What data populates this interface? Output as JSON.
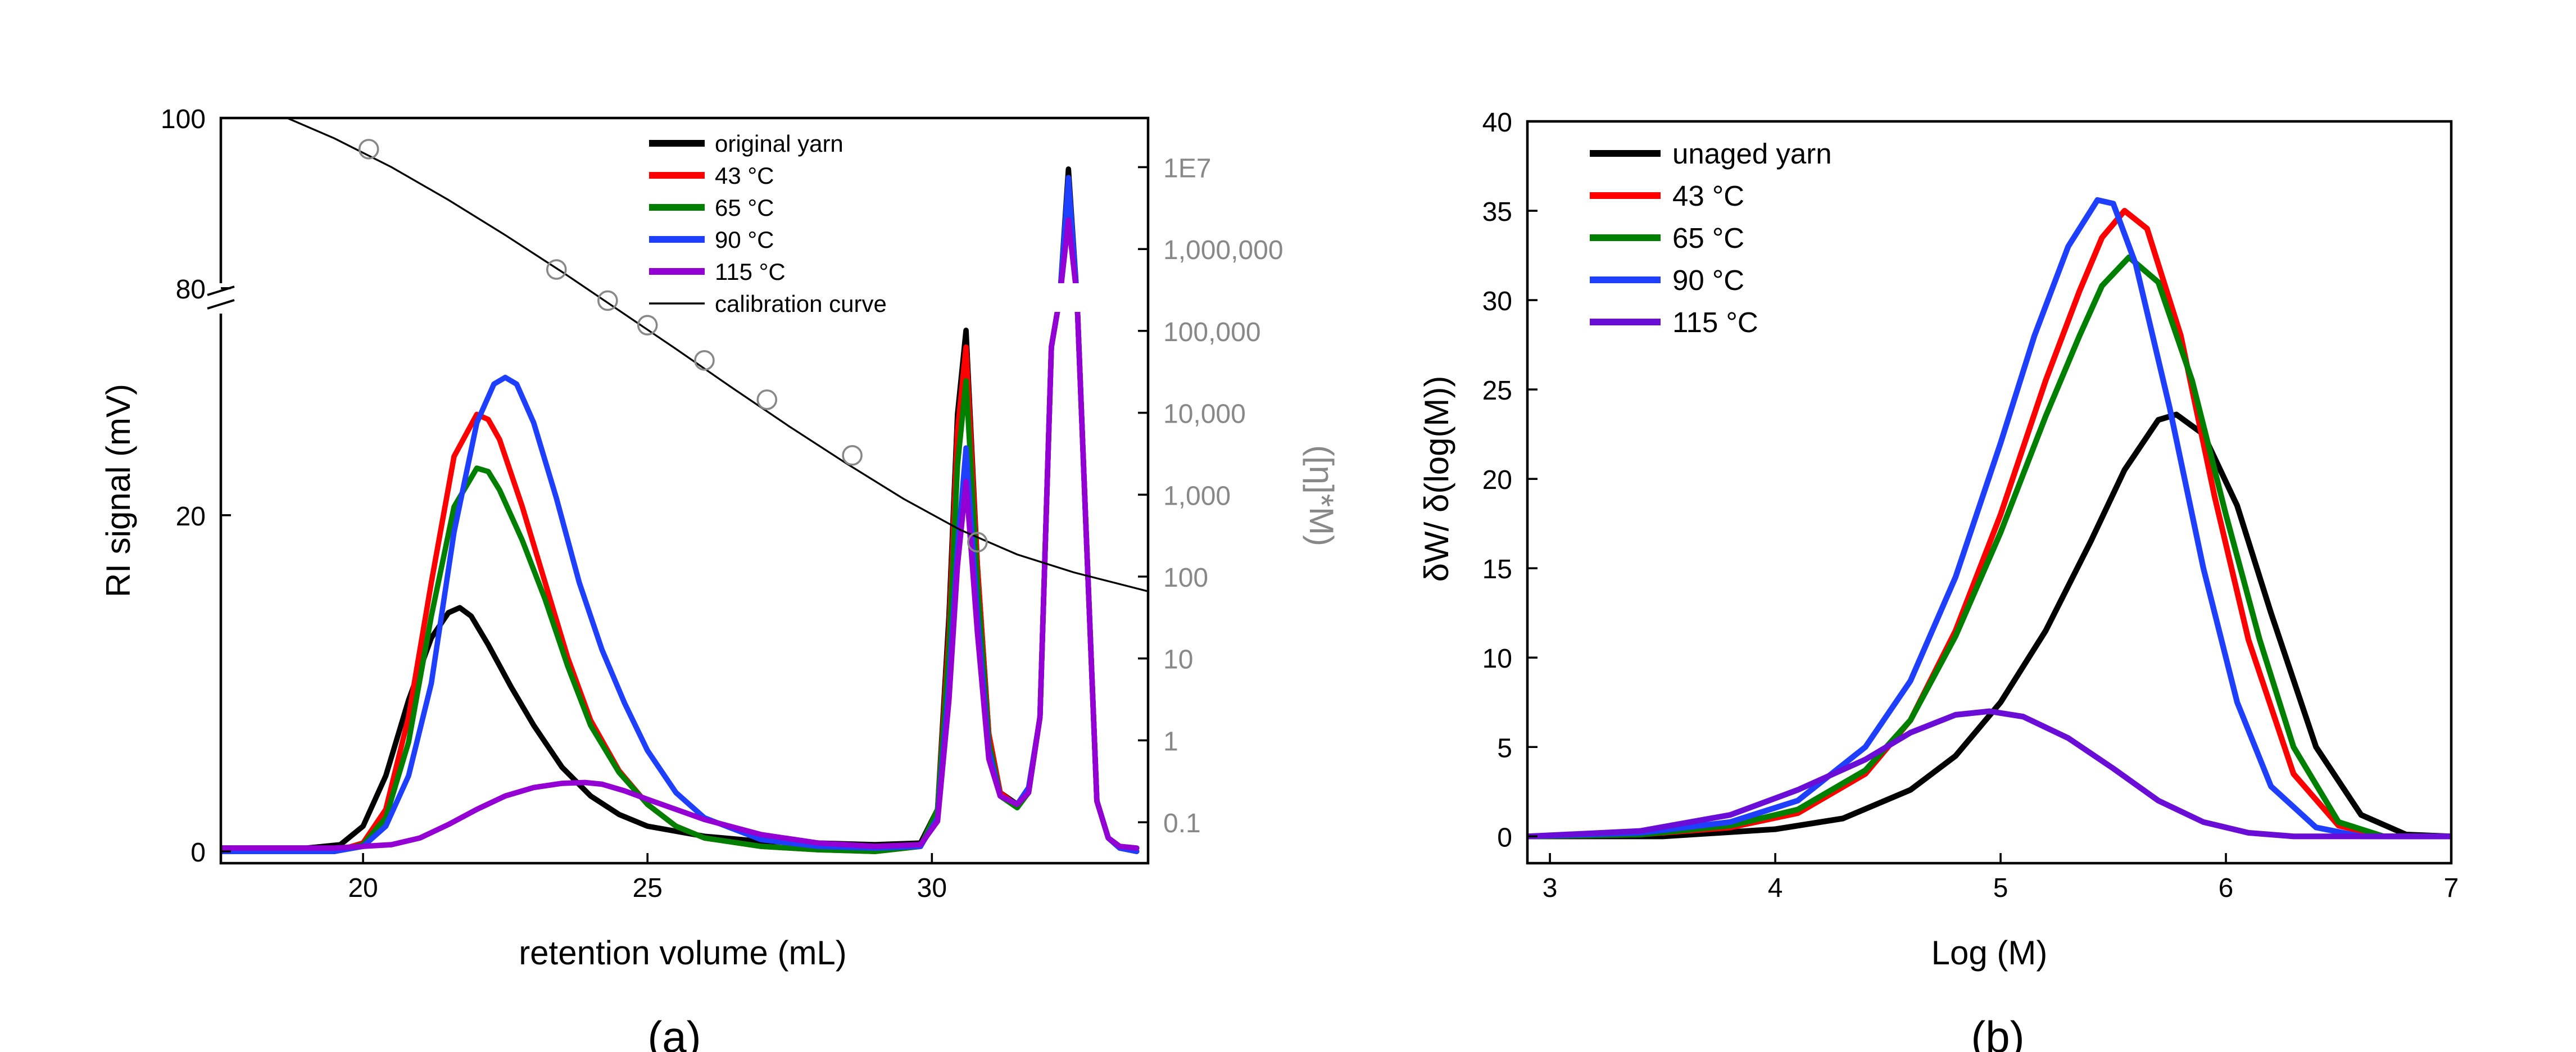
{
  "chart_data": [
    {
      "type": "line",
      "panel_label": "(a)",
      "xlabel": "retention volume (mL)",
      "ylabel": "RI signal (mV)",
      "y2label": "([η]*M)",
      "xlim": [
        17.5,
        33.8
      ],
      "x_ticks": [
        "20",
        "25",
        "30"
      ],
      "x_tick_values": [
        20,
        25,
        30
      ],
      "y_axis_break": true,
      "y_lower": {
        "lim": [
          -0.7,
          33
        ],
        "ticks": [
          "0",
          "20"
        ],
        "tick_values": [
          0,
          20
        ]
      },
      "y_upper": {
        "lim": [
          79,
          100
        ],
        "ticks": [
          "80",
          "100"
        ],
        "tick_values": [
          80,
          100
        ]
      },
      "y2_log_range": [
        -1.5,
        7.6
      ],
      "y2_ticks": [
        "0.1",
        "1",
        "10",
        "100",
        "1,000",
        "10,000",
        "100,000",
        "1,000,000",
        "1E7"
      ],
      "y2_tick_exponents": [
        -1,
        0,
        1,
        2,
        3,
        4,
        5,
        6,
        7
      ],
      "legend": [
        "original yarn",
        "43 °C",
        "65 °C",
        "90 °C",
        "115 °C",
        "calibration curve"
      ],
      "legend_position": "top-right",
      "series": [
        {
          "name": "original yarn",
          "color": "#000000",
          "x": [
            17.5,
            19.0,
            19.6,
            20.0,
            20.4,
            20.8,
            21.2,
            21.5,
            21.7,
            21.9,
            22.2,
            22.6,
            23.0,
            23.5,
            24.0,
            24.5,
            25.0,
            26.0,
            27.0,
            28.0,
            29.0,
            29.8,
            30.1,
            30.3,
            30.45,
            30.6,
            30.8,
            31.0,
            31.2,
            31.5,
            31.7,
            31.9,
            32.1,
            32.25,
            32.4,
            32.55,
            32.7,
            32.9,
            33.1,
            33.3,
            33.6
          ],
          "y": [
            0.2,
            0.2,
            0.4,
            1.5,
            4.5,
            9,
            12.7,
            14.2,
            14.5,
            14.0,
            12.3,
            9.8,
            7.5,
            5.0,
            3.3,
            2.2,
            1.5,
            0.9,
            0.6,
            0.5,
            0.4,
            0.5,
            2.5,
            14,
            26,
            31,
            17,
            7,
            3.5,
            2.8,
            3.5,
            8,
            30,
            60,
            94,
            72,
            20,
            3,
            0.8,
            0.3,
            0.2
          ]
        },
        {
          "name": "43 °C",
          "color": "#ff0000",
          "x": [
            17.5,
            19.5,
            20.0,
            20.4,
            20.8,
            21.2,
            21.6,
            22.0,
            22.2,
            22.4,
            22.8,
            23.2,
            23.6,
            24.0,
            24.5,
            25.0,
            25.5,
            26.0,
            27.0,
            28.0,
            29.0,
            29.8,
            30.1,
            30.3,
            30.45,
            30.6,
            30.8,
            31.0,
            31.2,
            31.5,
            31.7,
            31.9,
            32.1,
            32.25,
            32.4,
            32.55,
            32.7,
            32.9,
            33.1,
            33.3,
            33.6
          ],
          "y": [
            0,
            0,
            0.5,
            2.5,
            8,
            16,
            23.5,
            26,
            25.7,
            24.5,
            20.5,
            16,
            11.5,
            7.8,
            4.8,
            2.8,
            1.5,
            0.8,
            0.3,
            0.1,
            0,
            0.3,
            2.5,
            13,
            25,
            30,
            17,
            7,
            3.5,
            2.7,
            3.5,
            8,
            30,
            60,
            92,
            72,
            20,
            3,
            0.8,
            0.2,
            0
          ]
        },
        {
          "name": "65 °C",
          "color": "#007f00",
          "x": [
            17.5,
            19.5,
            20.0,
            20.4,
            20.8,
            21.2,
            21.6,
            22.0,
            22.2,
            22.4,
            22.8,
            23.2,
            23.6,
            24.0,
            24.5,
            25.0,
            25.5,
            26.0,
            27.0,
            28.0,
            29.0,
            29.8,
            30.1,
            30.3,
            30.45,
            30.6,
            30.8,
            31.0,
            31.2,
            31.5,
            31.7,
            31.9,
            32.1,
            32.25,
            32.4,
            32.55,
            32.7,
            32.9,
            33.1,
            33.3,
            33.6
          ],
          "y": [
            0,
            0,
            0.4,
            2,
            6.5,
            14,
            20.5,
            22.8,
            22.6,
            21.5,
            18.5,
            15,
            11,
            7.5,
            4.7,
            2.8,
            1.5,
            0.8,
            0.3,
            0.1,
            0,
            0.3,
            2.5,
            12,
            23,
            28,
            16,
            6.5,
            3.3,
            2.6,
            3.5,
            8,
            30,
            60,
            90,
            71,
            20,
            3,
            0.8,
            0.2,
            0
          ]
        },
        {
          "name": "90 °C",
          "color": "#1f3fff",
          "x": [
            17.5,
            19.5,
            20.0,
            20.4,
            20.8,
            21.2,
            21.6,
            22.0,
            22.3,
            22.5,
            22.7,
            23.0,
            23.4,
            23.8,
            24.2,
            24.6,
            25.0,
            25.5,
            26.0,
            27.0,
            28.0,
            29.0,
            29.8,
            30.1,
            30.3,
            30.45,
            30.6,
            30.8,
            31.0,
            31.2,
            31.5,
            31.7,
            31.9,
            32.1,
            32.25,
            32.4,
            32.55,
            32.7,
            32.9,
            33.1,
            33.3,
            33.6
          ],
          "y": [
            0,
            0,
            0.3,
            1.5,
            4.5,
            10,
            19,
            25.5,
            27.8,
            28.2,
            27.8,
            25.5,
            21,
            16,
            12,
            8.8,
            6,
            3.5,
            2,
            0.7,
            0.3,
            0.2,
            0.3,
            2,
            10,
            18,
            24,
            14,
            6,
            3.3,
            2.8,
            3.8,
            8,
            30,
            60,
            93,
            72,
            20,
            3,
            0.8,
            0.2,
            0
          ]
        },
        {
          "name": "115 °C",
          "color": "#9400d3",
          "x": [
            17.5,
            19.5,
            20.5,
            21.0,
            21.5,
            22.0,
            22.5,
            23.0,
            23.5,
            23.9,
            24.2,
            24.6,
            25.0,
            25.5,
            26.0,
            27.0,
            28.0,
            29.0,
            29.8,
            30.1,
            30.3,
            30.45,
            30.6,
            30.8,
            31.0,
            31.2,
            31.5,
            31.7,
            31.9,
            32.1,
            32.25,
            32.4,
            32.55,
            32.7,
            32.9,
            33.1,
            33.3,
            33.6
          ],
          "y": [
            0.2,
            0.2,
            0.4,
            0.8,
            1.6,
            2.5,
            3.3,
            3.8,
            4.05,
            4.1,
            4.0,
            3.6,
            3.1,
            2.5,
            1.9,
            1.0,
            0.5,
            0.3,
            0.4,
            1.8,
            9,
            17,
            22,
            13,
            5.5,
            3.3,
            2.8,
            3.5,
            8,
            30,
            60,
            88,
            70,
            20,
            3,
            0.8,
            0.3,
            0.2
          ]
        }
      ],
      "calibration_curve": {
        "name": "calibration curve",
        "color": "#000000",
        "x": [
          17.5,
          18.5,
          19.5,
          20.5,
          21.5,
          22.5,
          23.5,
          24.5,
          25.5,
          26.5,
          27.5,
          28.5,
          29.5,
          30.5,
          31.5,
          32.5,
          33.8
        ],
        "log10_y": [
          7.9,
          7.65,
          7.35,
          7.0,
          6.6,
          6.17,
          5.72,
          5.25,
          4.78,
          4.3,
          3.83,
          3.38,
          2.95,
          2.57,
          2.27,
          2.05,
          1.82
        ]
      },
      "calibration_points": {
        "marker": "open circle",
        "x": [
          20.1,
          23.4,
          24.3,
          25.0,
          26.0,
          27.1,
          28.6,
          30.8
        ],
        "log10_y": [
          7.22,
          5.75,
          5.37,
          5.07,
          4.64,
          4.16,
          3.48,
          2.42
        ]
      }
    },
    {
      "type": "line",
      "panel_label": "(b)",
      "xlabel": "Log (M)",
      "ylabel": "δW/ δ(log(M))",
      "xlim": [
        2.9,
        7.0
      ],
      "ylim": [
        -1.5,
        40
      ],
      "x_ticks": [
        "3",
        "4",
        "5",
        "6",
        "7"
      ],
      "x_tick_values": [
        3,
        4,
        5,
        6,
        7
      ],
      "y_ticks": [
        "0",
        "5",
        "10",
        "15",
        "20",
        "25",
        "30",
        "35",
        "40"
      ],
      "y_tick_values": [
        0,
        5,
        10,
        15,
        20,
        25,
        30,
        35,
        40
      ],
      "legend": [
        "unaged yarn",
        "43 °C",
        "65 °C",
        "90 °C",
        "115 °C"
      ],
      "legend_position": "top-left",
      "series": [
        {
          "name": "unaged yarn",
          "color": "#000000",
          "x": [
            2.9,
            3.5,
            4.0,
            4.3,
            4.6,
            4.8,
            5.0,
            5.2,
            5.4,
            5.55,
            5.7,
            5.78,
            5.9,
            6.05,
            6.2,
            6.4,
            6.6,
            6.8,
            7.0
          ],
          "y": [
            0,
            0,
            0.4,
            1.0,
            2.6,
            4.5,
            7.5,
            11.5,
            16.5,
            20.5,
            23.3,
            23.6,
            22.5,
            18.5,
            12.5,
            5,
            1.2,
            0.1,
            0
          ]
        },
        {
          "name": "43 °C",
          "color": "#ff0000",
          "x": [
            2.9,
            3.4,
            3.8,
            4.1,
            4.4,
            4.6,
            4.8,
            5.0,
            5.2,
            5.35,
            5.45,
            5.55,
            5.65,
            5.8,
            5.95,
            6.1,
            6.3,
            6.5,
            6.7,
            7.0
          ],
          "y": [
            0,
            0.1,
            0.5,
            1.3,
            3.5,
            6.5,
            11.5,
            18,
            25.5,
            30.5,
            33.5,
            35,
            34,
            28,
            19,
            11,
            3.5,
            0.6,
            0,
            0
          ]
        },
        {
          "name": "65 °C",
          "color": "#007f00",
          "x": [
            2.9,
            3.4,
            3.8,
            4.1,
            4.4,
            4.6,
            4.8,
            5.0,
            5.2,
            5.35,
            5.45,
            5.57,
            5.7,
            5.85,
            6.0,
            6.15,
            6.3,
            6.5,
            6.7,
            7.0
          ],
          "y": [
            0,
            0.1,
            0.6,
            1.5,
            3.7,
            6.5,
            11.2,
            17,
            23.5,
            28,
            30.8,
            32.4,
            31,
            25.5,
            18,
            11,
            5,
            0.8,
            0,
            0
          ]
        },
        {
          "name": "90 °C",
          "color": "#1f3fff",
          "x": [
            2.9,
            3.4,
            3.8,
            4.1,
            4.4,
            4.6,
            4.8,
            5.0,
            5.15,
            5.3,
            5.43,
            5.5,
            5.6,
            5.75,
            5.9,
            6.05,
            6.2,
            6.4,
            6.6,
            7.0
          ],
          "y": [
            0,
            0.2,
            0.8,
            2.0,
            5,
            8.7,
            14.5,
            22,
            28,
            33,
            35.6,
            35.4,
            32,
            24,
            15,
            7.5,
            2.8,
            0.5,
            0,
            0
          ]
        },
        {
          "name": "115 °C",
          "color": "#6a0dd6",
          "x": [
            2.9,
            3.4,
            3.8,
            4.1,
            4.4,
            4.6,
            4.8,
            4.95,
            5.1,
            5.3,
            5.5,
            5.7,
            5.9,
            6.1,
            6.3,
            6.5,
            7.0
          ],
          "y": [
            0,
            0.3,
            1.2,
            2.6,
            4.3,
            5.8,
            6.8,
            7.0,
            6.7,
            5.5,
            3.8,
            2.0,
            0.8,
            0.2,
            0,
            0,
            0
          ]
        }
      ]
    }
  ]
}
